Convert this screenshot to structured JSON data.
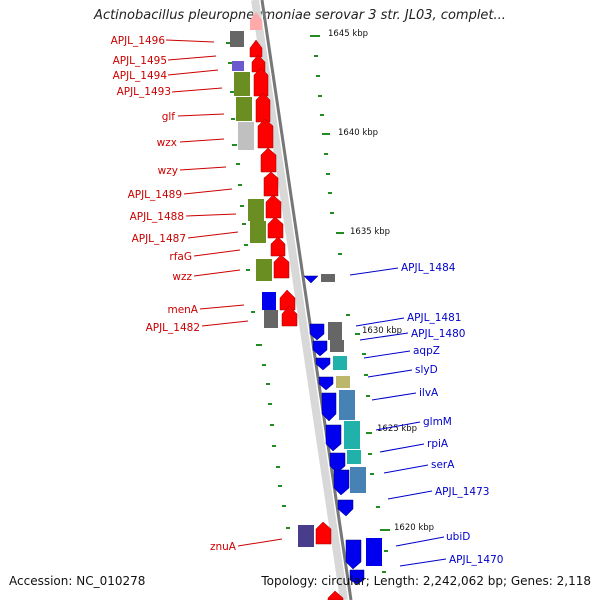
{
  "title": "Actinobacillus pleuropneumoniae serovar 3 str. JL03, complet...",
  "footer": {
    "accession": "Accession: NC_010278",
    "topology": "Topology: circular; Length: 2,242,062 bp; Genes: 2,118"
  },
  "colors": {
    "forward_label": "#cc0000",
    "reverse_label": "#0000cc",
    "forward_gene": "#ff0000",
    "reverse_gene": "#0000ee",
    "backbone": "#888888",
    "gc_tick": "#228b22"
  },
  "ticks": [
    "1645 kbp",
    "1640 kbp",
    "1635 kbp",
    "1630 kbp",
    "1625 kbp",
    "1620 kbp"
  ],
  "forward_genes": [
    "APJL_1496",
    "APJL_1495",
    "APJL_1494",
    "APJL_1493",
    "glf",
    "wzx",
    "wzy",
    "APJL_1489",
    "APJL_1488",
    "APJL_1487",
    "rfaG",
    "wzz",
    "menA",
    "APJL_1482",
    "znuA"
  ],
  "reverse_genes": [
    "APJL_1484",
    "APJL_1481",
    "APJL_1480",
    "aqpZ",
    "slyD",
    "ilvA",
    "glmM",
    "rpiA",
    "serA",
    "APJL_1473",
    "ubiD",
    "APJL_1470"
  ]
}
